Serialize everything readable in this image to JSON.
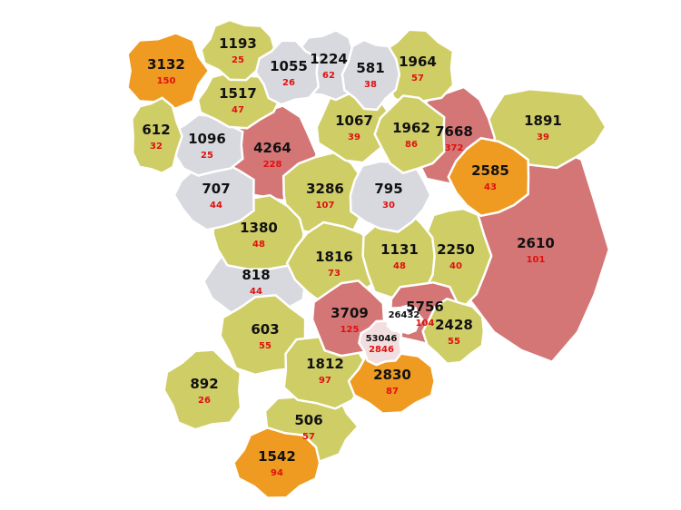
{
  "regions": [
    {
      "value": 3132,
      "sub": 150,
      "color": "#ef9b22"
    },
    {
      "value": 1193,
      "sub": 25,
      "color": "#cfcd66"
    },
    {
      "value": 1055,
      "sub": 26,
      "color": "#d8d9df"
    },
    {
      "value": 1224,
      "sub": 62,
      "color": "#d8d9df"
    },
    {
      "value": 581,
      "sub": 38,
      "color": "#d8d9df"
    },
    {
      "value": 1964,
      "sub": 57,
      "color": "#cfcd66"
    },
    {
      "value": 612,
      "sub": 32,
      "color": "#cfcd66"
    },
    {
      "value": 1517,
      "sub": 47,
      "color": "#cfcd66"
    },
    {
      "value": 1096,
      "sub": 25,
      "color": "#d8d9df"
    },
    {
      "value": 4264,
      "sub": 228,
      "color": "#d57676"
    },
    {
      "value": 1067,
      "sub": 39,
      "color": "#cfcd66"
    },
    {
      "value": 1962,
      "sub": 86,
      "color": "#cfcd66"
    },
    {
      "value": 7668,
      "sub": 372,
      "color": "#d57676"
    },
    {
      "value": 1891,
      "sub": 39,
      "color": "#cfcd66"
    },
    {
      "value": 707,
      "sub": 44,
      "color": "#d8d9df"
    },
    {
      "value": 3286,
      "sub": 107,
      "color": "#cfcd66"
    },
    {
      "value": 795,
      "sub": 30,
      "color": "#d8d9df"
    },
    {
      "value": 2585,
      "sub": 43,
      "color": "#ef9b22"
    },
    {
      "value": 1380,
      "sub": 48,
      "color": "#cfcd66"
    },
    {
      "value": 2610,
      "sub": 101,
      "color": "#d57676"
    },
    {
      "value": 1816,
      "sub": 73,
      "color": "#cfcd66"
    },
    {
      "value": 1131,
      "sub": 48,
      "color": "#cfcd66"
    },
    {
      "value": 2250,
      "sub": 40,
      "color": "#cfcd66"
    },
    {
      "value": 818,
      "sub": 44,
      "color": "#d8d9df"
    },
    {
      "value": 3709,
      "sub": 125,
      "color": "#d57676"
    },
    {
      "value": 5756,
      "sub": 104,
      "color": "#d57676"
    },
    {
      "value": 2428,
      "sub": 55,
      "color": "#cfcd66"
    },
    {
      "value": 603,
      "sub": 55,
      "color": "#cfcd66"
    },
    {
      "value": 1812,
      "sub": 97,
      "color": "#cfcd66"
    },
    {
      "value": 2830,
      "sub": 87,
      "color": "#ef9b22"
    },
    {
      "value": 892,
      "sub": 26,
      "color": "#cfcd66"
    },
    {
      "value": 506,
      "sub": 57,
      "color": "#cfcd66"
    },
    {
      "value": 1542,
      "sub": 94,
      "color": "#ef9b22"
    },
    {
      "value": 53046,
      "sub": 2846,
      "color": "#f2dede"
    },
    {
      "value": 26432,
      "color": "#ffffff"
    }
  ]
}
